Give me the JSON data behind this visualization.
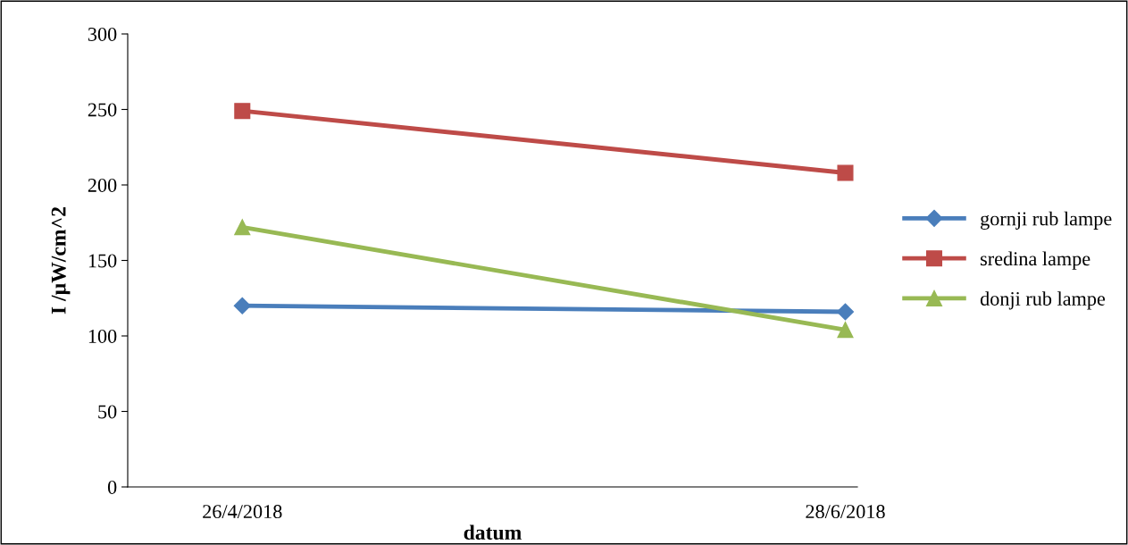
{
  "chart_data": {
    "type": "line",
    "xlabel": "datum",
    "ylabel": "I /µW/cm^2",
    "categories": [
      "26/4/2018",
      "28/6/2018"
    ],
    "series": [
      {
        "name": "gornji rub lampe",
        "color": "#4a7ebb",
        "marker": "diamond",
        "values": [
          120,
          116
        ]
      },
      {
        "name": "sredina lampe",
        "color": "#be4b48",
        "marker": "square",
        "values": [
          249,
          208
        ]
      },
      {
        "name": "donji rub lampe",
        "color": "#98b954",
        "marker": "triangle",
        "values": [
          172,
          104
        ]
      }
    ],
    "ylim": [
      0,
      300
    ],
    "yticks": [
      0,
      50,
      100,
      150,
      200,
      250,
      300
    ],
    "grid": false,
    "legend": "right",
    "line_style": "solid"
  }
}
